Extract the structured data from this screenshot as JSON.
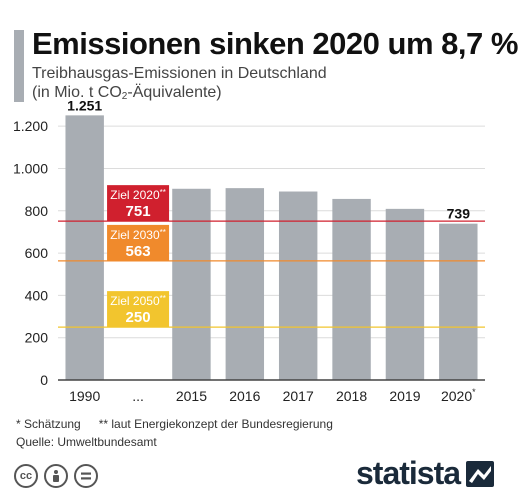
{
  "header": {
    "title": "Emissionen sinken 2020 um 8,7 %",
    "subtitle_line1": "Treibhausgas-Emissionen in Deutschland",
    "subtitle_line2_pre": "(in Mio. t CO",
    "subtitle_sub": "2",
    "subtitle_line2_post": "-Äquivalente)"
  },
  "chart_data": {
    "type": "bar",
    "title": "Emissionen sinken 2020 um 8,7 %",
    "categories": [
      "1990",
      "...",
      "2015",
      "2016",
      "2017",
      "2018",
      "2019",
      "2020*"
    ],
    "values": [
      1251,
      null,
      904,
      907,
      891,
      856,
      809,
      739
    ],
    "value_labels": [
      "1.251",
      "",
      "",
      "",
      "",
      "",
      "",
      "739"
    ],
    "y_ticks": [
      0,
      200,
      400,
      600,
      800,
      1000,
      1200
    ],
    "y_tick_labels": [
      "0",
      "200",
      "400",
      "600",
      "800",
      "1.000",
      "1.200"
    ],
    "ylim": [
      0,
      1300
    ],
    "grid": true,
    "targets": [
      {
        "label": "Ziel 2020**",
        "value_text": "751",
        "value": 751,
        "color": "#d0202e"
      },
      {
        "label": "Ziel 2030**",
        "value_text": "563",
        "value": 563,
        "color": "#f08a2c"
      },
      {
        "label": "Ziel 2050**",
        "value_text": "250",
        "value": 250,
        "color": "#f2c52e"
      }
    ],
    "bar_color": "#a8adb3"
  },
  "footer": {
    "note_estimate": "* Schätzung",
    "note_target": "** laut Energiekonzept der Bundesregierung",
    "source": "Quelle: Umweltbundesamt"
  },
  "license_icons": [
    "cc-icon",
    "person-icon",
    "equals-icon"
  ],
  "brand": {
    "name": "statista"
  }
}
